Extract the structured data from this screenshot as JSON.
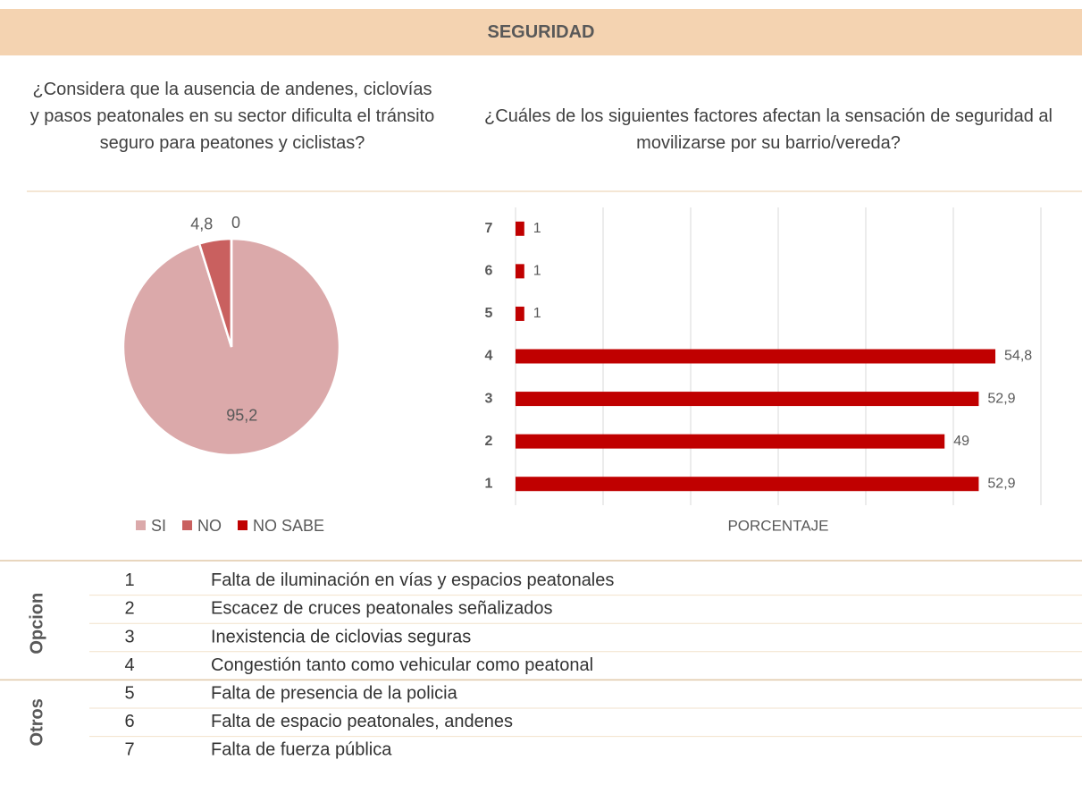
{
  "header": {
    "title": "SEGURIDAD"
  },
  "chart_data": [
    {
      "type": "pie",
      "title": "¿Considera que la ausencia de andenes, ciclovías y pasos peatonales en su sector dificulta el tránsito seguro para peatones y ciclistas?",
      "categories": [
        "SI",
        "NO",
        "NO SABE"
      ],
      "values": [
        95.2,
        4.8,
        0
      ],
      "value_labels": [
        "95,2",
        "4,8",
        "0"
      ],
      "colors": [
        "#dba9aa",
        "#c9605f",
        "#c00000"
      ],
      "legend": "bottom"
    },
    {
      "type": "hbar",
      "title": "¿Cuáles de los siguientes factores afectan la sensación de seguridad al movilizarse por su barrio/vereda?",
      "categories": [
        "1",
        "2",
        "3",
        "4",
        "5",
        "6",
        "7"
      ],
      "values": [
        52.9,
        49,
        52.9,
        54.8,
        1,
        1,
        1
      ],
      "value_labels": [
        "52,9",
        "49",
        "52,9",
        "54,8",
        "1",
        "1",
        "1"
      ],
      "color": "#c00000",
      "xlabel": "PORCENTAJE",
      "xlim": [
        0,
        60
      ],
      "xticks": [
        0,
        10,
        20,
        30,
        40,
        50,
        60
      ],
      "grid": true
    }
  ],
  "table": {
    "groups": [
      {
        "label": "Opcion",
        "rows": [
          [
            "1",
            "Falta de iluminación en vías y espacios peatonales"
          ],
          [
            "2",
            "Escacez de cruces peatonales señalizados"
          ],
          [
            "3",
            "Inexistencia de ciclovias seguras"
          ],
          [
            "4",
            "Congestión tanto como vehicular como peatonal"
          ]
        ]
      },
      {
        "label": "Otros",
        "rows": [
          [
            "5",
            "Falta de presencia de la policia"
          ],
          [
            "6",
            "Falta de espacio peatonales, andenes"
          ],
          [
            "7",
            "Falta de fuerza pública"
          ]
        ]
      }
    ]
  }
}
